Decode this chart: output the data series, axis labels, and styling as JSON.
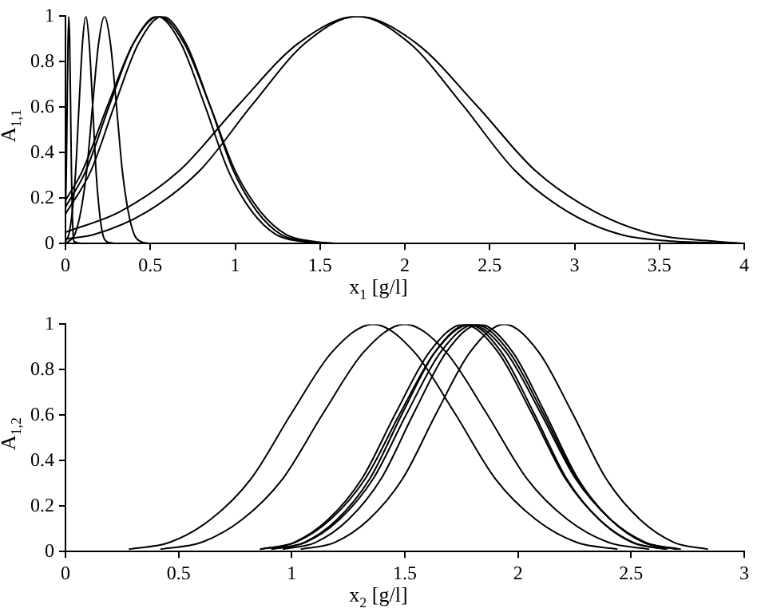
{
  "chart_data": [
    {
      "type": "line",
      "xlabel": "x$_{1}$ [g/l]",
      "ylabel": "A$_{1,1}$",
      "xlim": [
        0,
        4
      ],
      "xticks": [
        0,
        0.5,
        1,
        1.5,
        2,
        2.5,
        3,
        3.5,
        4
      ],
      "ylim": [
        0,
        1
      ],
      "yticks": [
        0,
        0.2,
        0.4,
        0.6,
        0.8,
        1
      ],
      "series": [
        {
          "color": "#000000",
          "x": [
            0,
            0.005,
            0.01,
            0.015,
            0.02,
            0.025,
            0.03,
            0.035,
            0.04,
            0.045,
            0.05,
            0.1
          ],
          "values": [
            0.14,
            0.32,
            0.61,
            0.88,
            1,
            0.88,
            0.61,
            0.32,
            0.14,
            0.04,
            0.01,
            0
          ]
        },
        {
          "color": "#000000",
          "x": [
            0,
            0.02,
            0.04,
            0.06,
            0.08,
            0.1,
            0.12,
            0.14,
            0.16,
            0.18,
            0.2,
            0.22,
            0.24,
            0.3
          ],
          "values": [
            0.01,
            0.04,
            0.14,
            0.32,
            0.61,
            0.88,
            1,
            0.88,
            0.61,
            0.32,
            0.14,
            0.04,
            0.01,
            0
          ]
        },
        {
          "color": "#000000",
          "x": [
            0,
            0.02,
            0.055,
            0.09,
            0.125,
            0.16,
            0.195,
            0.23,
            0.265,
            0.3,
            0.335,
            0.37,
            0.405,
            0.44,
            0.5
          ],
          "values": [
            0,
            0.01,
            0.04,
            0.14,
            0.32,
            0.61,
            0.88,
            1,
            0.88,
            0.61,
            0.32,
            0.14,
            0.04,
            0.01,
            0
          ]
        },
        {
          "color": "#000000",
          "x": [
            0,
            0.12,
            0.26,
            0.4,
            0.54,
            0.68,
            0.82,
            0.96,
            1.1,
            1.24,
            1.38,
            1.6
          ],
          "values": [
            0.16,
            0.32,
            0.61,
            0.88,
            1,
            0.88,
            0.61,
            0.32,
            0.14,
            0.04,
            0.01,
            0
          ]
        },
        {
          "color": "#000000",
          "x": [
            0,
            0.1,
            0.25,
            0.4,
            0.55,
            0.7,
            0.85,
            1,
            1.15,
            1.3,
            1.45,
            1.6
          ],
          "values": [
            0.19,
            0.32,
            0.61,
            0.88,
            1,
            0.88,
            0.61,
            0.32,
            0.14,
            0.04,
            0.01,
            0
          ]
        },
        {
          "color": "#000000",
          "x": [
            0,
            0.15,
            0.29,
            0.43,
            0.57,
            0.71,
            0.85,
            0.99,
            1.13,
            1.27,
            1.41,
            1.6
          ],
          "values": [
            0.13,
            0.32,
            0.61,
            0.88,
            1,
            0.88,
            0.61,
            0.32,
            0.14,
            0.04,
            0.01,
            0
          ]
        },
        {
          "color": "#000000",
          "x": [
            0,
            0.32,
            0.67,
            1.02,
            1.37,
            1.72,
            2.07,
            2.42,
            2.77,
            3.12,
            3.47,
            3.82,
            4
          ],
          "values": [
            0.05,
            0.14,
            0.32,
            0.61,
            0.88,
            1,
            0.88,
            0.61,
            0.32,
            0.14,
            0.04,
            0.01,
            0
          ]
        },
        {
          "color": "#000000",
          "x": [
            0,
            0.17,
            0.48,
            0.79,
            1.1,
            1.41,
            1.72,
            2.03,
            2.34,
            2.65,
            2.96,
            3.27,
            3.58,
            4
          ],
          "values": [
            0.02,
            0.04,
            0.14,
            0.32,
            0.61,
            0.88,
            1,
            0.88,
            0.61,
            0.32,
            0.14,
            0.04,
            0.01,
            0
          ]
        }
      ]
    },
    {
      "type": "line",
      "xlabel": "x$_{2}$ [g/l]",
      "ylabel": "A$_{1,2}$",
      "xlim": [
        0,
        3
      ],
      "xticks": [
        0,
        0.5,
        1,
        1.5,
        2,
        2.5,
        3
      ],
      "ylim": [
        0,
        1
      ],
      "yticks": [
        0,
        0.2,
        0.4,
        0.6,
        0.8,
        1
      ],
      "series": [
        {
          "color": "#000000",
          "x": [
            0.28,
            0.46,
            0.64,
            0.82,
            1,
            1.18,
            1.36,
            1.54,
            1.72,
            1.9,
            2.08,
            2.26,
            2.44
          ],
          "values": [
            0.01,
            0.04,
            0.14,
            0.32,
            0.61,
            0.88,
            1,
            0.88,
            0.61,
            0.32,
            0.14,
            0.04,
            0.01
          ]
        },
        {
          "color": "#000000",
          "x": [
            0.42,
            0.6,
            0.78,
            0.96,
            1.14,
            1.32,
            1.5,
            1.68,
            1.86,
            2.04,
            2.22,
            2.4,
            2.58
          ],
          "values": [
            0.01,
            0.04,
            0.14,
            0.32,
            0.61,
            0.88,
            1,
            0.88,
            0.61,
            0.32,
            0.14,
            0.04,
            0.01
          ]
        },
        {
          "color": "#000000",
          "x": [
            0.86,
            1.01,
            1.16,
            1.31,
            1.46,
            1.61,
            1.76,
            1.91,
            2.06,
            2.21,
            2.36,
            2.51,
            2.66
          ],
          "values": [
            0.01,
            0.04,
            0.14,
            0.32,
            0.61,
            0.88,
            1,
            0.88,
            0.61,
            0.32,
            0.14,
            0.04,
            0.01
          ]
        },
        {
          "color": "#000000",
          "x": [
            0.91,
            1.055,
            1.2,
            1.345,
            1.49,
            1.635,
            1.78,
            1.925,
            2.07,
            2.215,
            2.36,
            2.505,
            2.65
          ],
          "values": [
            0.01,
            0.04,
            0.14,
            0.32,
            0.61,
            0.88,
            1,
            0.88,
            0.61,
            0.32,
            0.14,
            0.04,
            0.01
          ]
        },
        {
          "color": "#000000",
          "x": [
            0.86,
            1.015,
            1.17,
            1.325,
            1.48,
            1.635,
            1.79,
            1.945,
            2.1,
            2.255,
            2.41,
            2.565,
            2.72
          ],
          "values": [
            0.01,
            0.04,
            0.14,
            0.32,
            0.61,
            0.88,
            1,
            0.88,
            0.61,
            0.32,
            0.14,
            0.04,
            0.01
          ]
        },
        {
          "color": "#000000",
          "x": [
            0.91,
            1.06,
            1.21,
            1.36,
            1.51,
            1.66,
            1.81,
            1.96,
            2.11,
            2.26,
            2.41,
            2.56,
            2.71
          ],
          "values": [
            0.01,
            0.04,
            0.14,
            0.32,
            0.61,
            0.88,
            1,
            0.88,
            0.61,
            0.32,
            0.14,
            0.04,
            0.01
          ]
        },
        {
          "color": "#000000",
          "x": [
            0.96,
            1.105,
            1.25,
            1.395,
            1.54,
            1.685,
            1.83,
            1.975,
            2.12,
            2.265,
            2.41,
            2.555,
            2.7
          ],
          "values": [
            0.01,
            0.04,
            0.14,
            0.32,
            0.61,
            0.88,
            1,
            0.88,
            0.61,
            0.32,
            0.14,
            0.04,
            0.01
          ]
        },
        {
          "color": "#000000",
          "x": [
            1.04,
            1.19,
            1.34,
            1.49,
            1.64,
            1.79,
            1.94,
            2.09,
            2.24,
            2.39,
            2.54,
            2.69,
            2.84
          ],
          "values": [
            0.01,
            0.04,
            0.14,
            0.32,
            0.61,
            0.88,
            1,
            0.88,
            0.61,
            0.32,
            0.14,
            0.04,
            0.01
          ]
        }
      ]
    }
  ]
}
